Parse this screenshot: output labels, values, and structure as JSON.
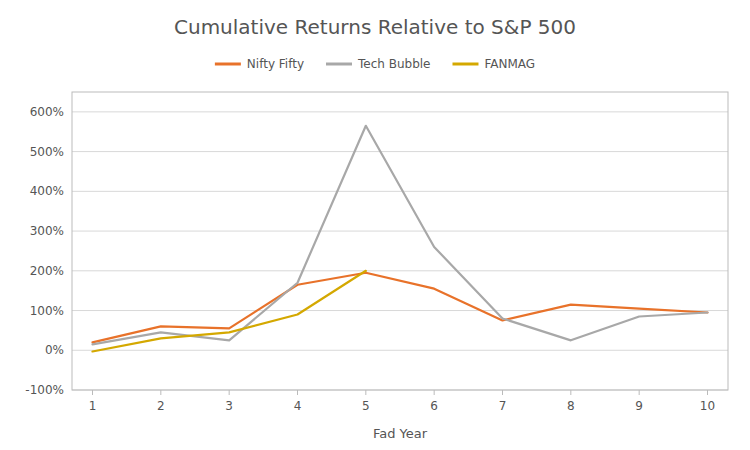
{
  "chart_data": {
    "type": "line",
    "title": "Cumulative Returns Relative to S&P 500",
    "x_label": "Fad Year",
    "x": [
      1,
      2,
      3,
      4,
      5,
      6,
      7,
      8,
      9,
      10
    ],
    "series": [
      {
        "name": "Nifty Fifty",
        "color": "#E8722A",
        "values": [
          0.2,
          0.6,
          0.55,
          1.65,
          1.95,
          1.55,
          0.75,
          1.15,
          1.05,
          0.95
        ]
      },
      {
        "name": "Tech Bubble",
        "color": "#A8A8A8",
        "values": [
          0.15,
          0.45,
          0.25,
          1.7,
          5.65,
          2.6,
          0.8,
          0.25,
          0.85,
          0.95
        ]
      },
      {
        "name": "FANMAG",
        "color": "#D4A800",
        "values": [
          -0.03,
          0.3,
          0.45,
          0.9,
          2.0,
          null,
          null,
          null,
          null,
          null
        ]
      }
    ],
    "xlim": [
      0.7,
      10.3
    ],
    "xticks": [
      1,
      2,
      3,
      4,
      5,
      6,
      7,
      8,
      9,
      10
    ],
    "ylim": [
      -1.0,
      6.5
    ],
    "yticks": [
      {
        "value": -1.0,
        "label": "-100%"
      },
      {
        "value": 0.0,
        "label": "0%"
      },
      {
        "value": 1.0,
        "label": "100%"
      },
      {
        "value": 2.0,
        "label": "200%"
      },
      {
        "value": 3.0,
        "label": "300%"
      },
      {
        "value": 4.0,
        "label": "400%"
      },
      {
        "value": 5.0,
        "label": "500%"
      },
      {
        "value": 6.0,
        "label": "600%"
      }
    ],
    "grid": true,
    "legend": "top"
  }
}
